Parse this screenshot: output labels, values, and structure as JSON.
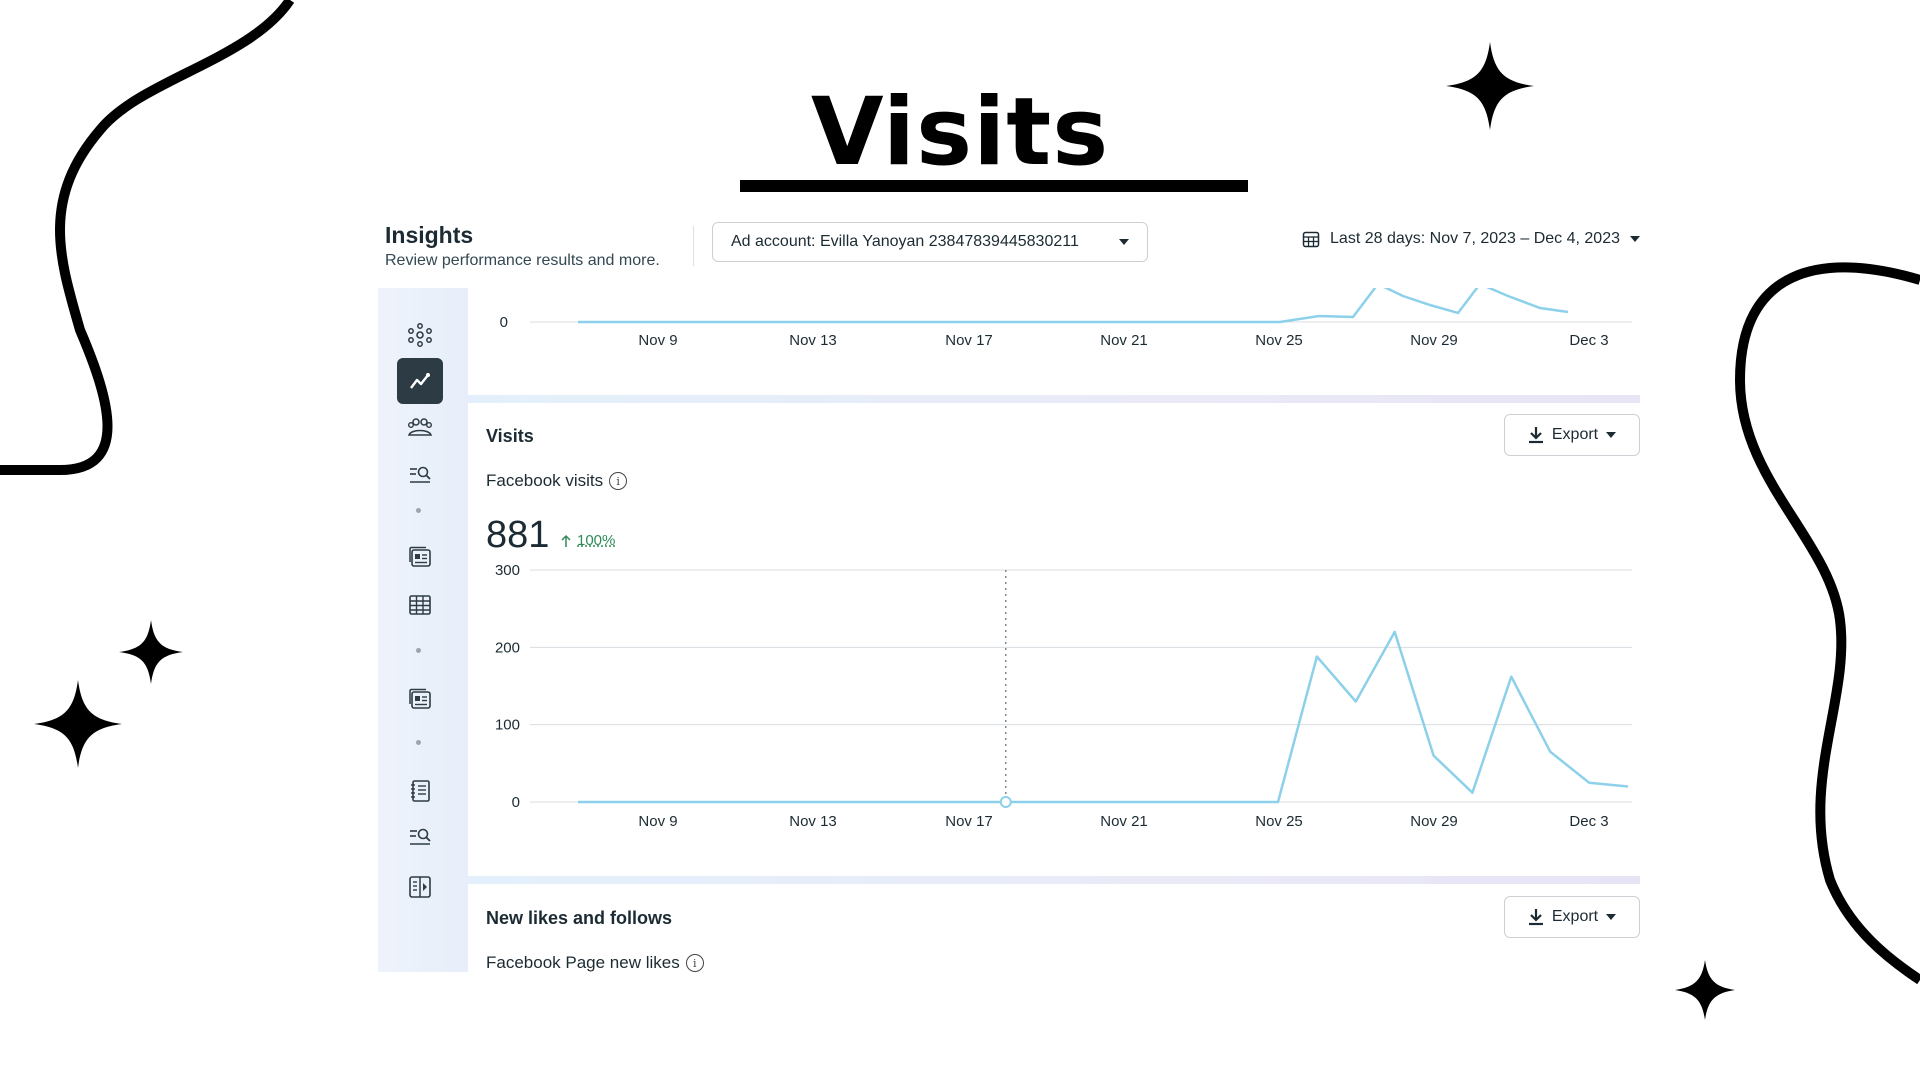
{
  "slide": {
    "title": "Visits"
  },
  "header": {
    "title": "Insights",
    "subtitle": "Review performance results and more.",
    "ad_account": "Ad account: Evilla Yanoyan 23847839445830211",
    "date_range": "Last 28 days: Nov 7, 2023 – Dec 4, 2023"
  },
  "sidebar": {
    "icons": [
      "overview-icon",
      "trend-icon",
      "audience-icon",
      "search-list-icon",
      "content-icon",
      "table-icon",
      "content-icon-2",
      "notebook-icon",
      "search-list-icon-2",
      "book-icon"
    ],
    "active": "trend-icon"
  },
  "visits_card": {
    "title": "Visits",
    "export_label": "Export",
    "metric_label": "Facebook visits",
    "metric_value": "881",
    "metric_change": "100%"
  },
  "likes_card": {
    "title": "New likes and follows",
    "export_label": "Export",
    "metric_label": "Facebook Page new likes"
  },
  "chart_data": [
    {
      "type": "line",
      "note": "partially visible chart above Visits card",
      "x_ticks": [
        "Nov 9",
        "Nov 13",
        "Nov 17",
        "Nov 21",
        "Nov 25",
        "Nov 29",
        "Dec 3"
      ],
      "y_ticks": [
        "0"
      ]
    },
    {
      "type": "line",
      "x_ticks": [
        "Nov 9",
        "Nov 13",
        "Nov 17",
        "Nov 21",
        "Nov 25",
        "Nov 29",
        "Dec 3"
      ],
      "y_ticks": [
        "0",
        "100",
        "200",
        "300"
      ],
      "ylim": [
        0,
        300
      ],
      "grid": true,
      "color": "#8dd0ea",
      "x": [
        "Nov 7",
        "Nov 8",
        "Nov 9",
        "Nov 10",
        "Nov 11",
        "Nov 12",
        "Nov 13",
        "Nov 14",
        "Nov 15",
        "Nov 16",
        "Nov 17",
        "Nov 18",
        "Nov 19",
        "Nov 20",
        "Nov 21",
        "Nov 22",
        "Nov 23",
        "Nov 24",
        "Nov 25",
        "Nov 26",
        "Nov 27",
        "Nov 28",
        "Nov 29",
        "Nov 30",
        "Dec 1",
        "Dec 2",
        "Dec 3",
        "Dec 4"
      ],
      "values": [
        0,
        0,
        0,
        0,
        0,
        0,
        0,
        0,
        0,
        0,
        0,
        0,
        0,
        0,
        0,
        0,
        0,
        0,
        0,
        188,
        130,
        220,
        60,
        12,
        162,
        65,
        25,
        20
      ],
      "highlight_index": 11
    }
  ]
}
